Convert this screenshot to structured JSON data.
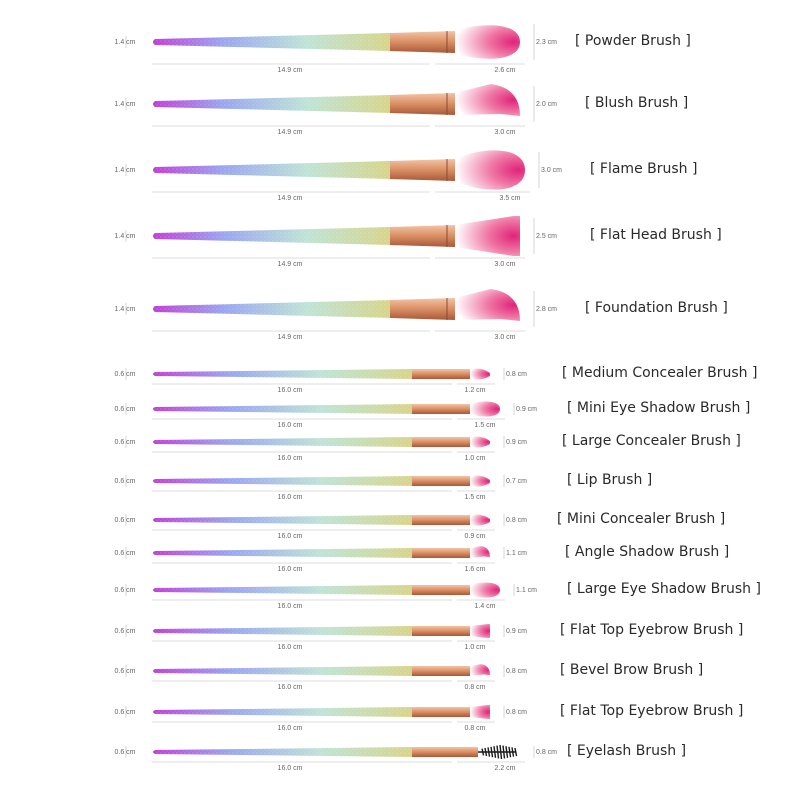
{
  "brushes": [
    {
      "name": "[  Powder Brush  ]",
      "handle_dia": "1.4 cm",
      "length": "14.9 cm",
      "head_len": "2.6 cm",
      "head_h": "2.3 cm",
      "size": "large",
      "head": "round"
    },
    {
      "name": "[  Blush Brush  ]",
      "handle_dia": "1.4 cm",
      "length": "14.9 cm",
      "head_len": "3.0 cm",
      "head_h": "2.0 cm",
      "size": "large",
      "head": "angled"
    },
    {
      "name": "[  Flame Brush  ]",
      "handle_dia": "1.4 cm",
      "length": "14.9 cm",
      "head_len": "3.5 cm",
      "head_h": "3.0 cm",
      "size": "large",
      "head": "round"
    },
    {
      "name": "[  Flat Head Brush  ]",
      "handle_dia": "1.4 cm",
      "length": "14.9 cm",
      "head_len": "3.0 cm",
      "head_h": "2.5 cm",
      "size": "large",
      "head": "flat"
    },
    {
      "name": "[  Foundation Brush  ]",
      "handle_dia": "1.4 cm",
      "length": "14.9 cm",
      "head_len": "3.0 cm",
      "head_h": "2.8 cm",
      "size": "large",
      "head": "angled"
    },
    {
      "name": "[  Medium Concealer Brush  ]",
      "handle_dia": "0.6 cm",
      "length": "16.0 cm",
      "head_len": "1.2 cm",
      "head_h": "0.8 cm",
      "size": "small",
      "head": "tip"
    },
    {
      "name": "[  Mini Eye Shadow Brush  ]",
      "handle_dia": "0.6 cm",
      "length": "16.0 cm",
      "head_len": "1.5 cm",
      "head_h": "0.9 cm",
      "size": "small",
      "head": "round"
    },
    {
      "name": "[  Large Concealer Brush  ]",
      "handle_dia": "0.6 cm",
      "length": "16.0 cm",
      "head_len": "1.0 cm",
      "head_h": "0.9 cm",
      "size": "small",
      "head": "tip"
    },
    {
      "name": "[  Lip Brush  ]",
      "handle_dia": "0.6 cm",
      "length": "16.0 cm",
      "head_len": "1.5 cm",
      "head_h": "0.7 cm",
      "size": "small",
      "head": "tip"
    },
    {
      "name": "[  Mini Concealer Brush  ]",
      "handle_dia": "0.6 cm",
      "length": "16.0 cm",
      "head_len": "0.9 cm",
      "head_h": "0.8 cm",
      "size": "small",
      "head": "tip"
    },
    {
      "name": "[  Angle Shadow Brush  ]",
      "handle_dia": "0.6 cm",
      "length": "16.0 cm",
      "head_len": "1.6 cm",
      "head_h": "1.1 cm",
      "size": "small",
      "head": "angled"
    },
    {
      "name": "[  Large Eye Shadow Brush  ]",
      "handle_dia": "0.6 cm",
      "length": "16.0 cm",
      "head_len": "1.4 cm",
      "head_h": "1.1 cm",
      "size": "small",
      "head": "round"
    },
    {
      "name": "[  Flat Top Eyebrow Brush  ]",
      "handle_dia": "0.6 cm",
      "length": "16.0 cm",
      "head_len": "1.0 cm",
      "head_h": "0.9 cm",
      "size": "small",
      "head": "flat"
    },
    {
      "name": "[  Bevel Brow Brush  ]",
      "handle_dia": "0.6 cm",
      "length": "16.0 cm",
      "head_len": "0.8 cm",
      "head_h": "0.8 cm",
      "size": "small",
      "head": "angled"
    },
    {
      "name": "[  Flat Top Eyebrow Brush  ]",
      "handle_dia": "0.6 cm",
      "length": "16.0 cm",
      "head_len": "0.8 cm",
      "head_h": "0.8 cm",
      "size": "small",
      "head": "flat"
    },
    {
      "name": "[  Eyelash Brush  ]",
      "handle_dia": "0.6 cm",
      "length": "16.0 cm",
      "head_len": "2.2 cm",
      "head_h": "0.8 cm",
      "size": "small",
      "head": "spoolie"
    }
  ],
  "colors": {
    "handle_start": "#c03fd8",
    "handle_mid1": "#9aa6f0",
    "handle_mid2": "#bfe3d6",
    "handle_end": "#d7d48a",
    "ferrule": "#d98e63",
    "bristle_tip": "#e0247a",
    "bristle_base": "#ffffff",
    "dim_line": "#bbbbbb",
    "spoolie": "#1a1a1a"
  }
}
